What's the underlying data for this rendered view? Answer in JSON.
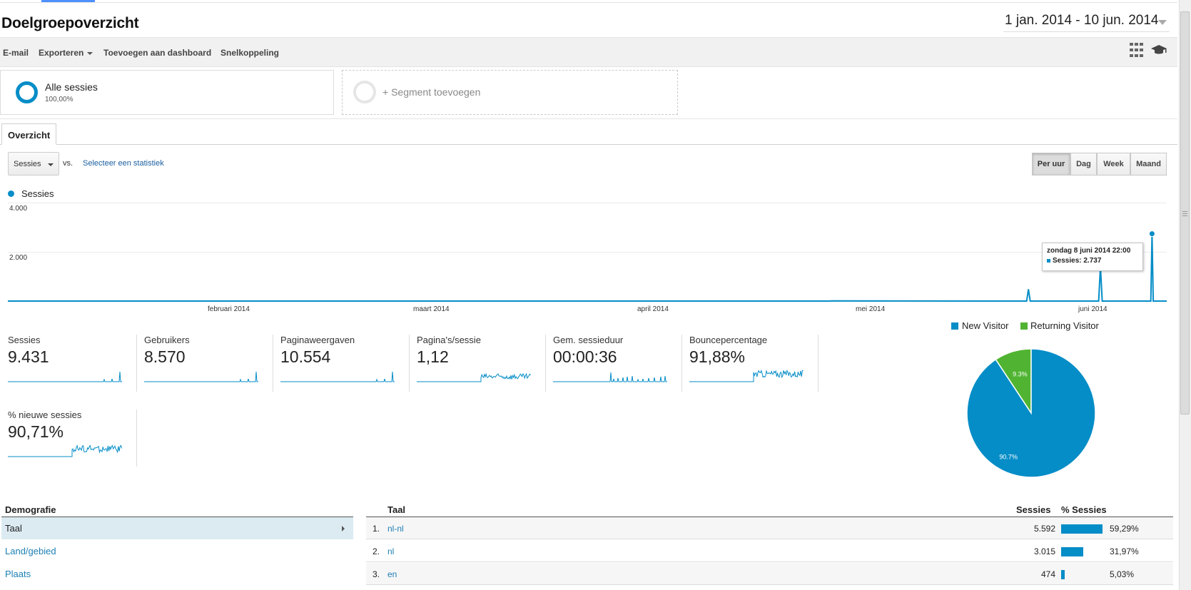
{
  "header": {
    "title": "Doelgroepoverzicht",
    "date_range": "1 jan. 2014 - 10 jun. 2014"
  },
  "toolbar": {
    "email": "E-mail",
    "export": "Exporteren",
    "add_dashboard": "Toevoegen aan dashboard",
    "shortcut": "Snelkoppeling",
    "icons": [
      "grid-icon",
      "graduation-cap-icon"
    ]
  },
  "segments": {
    "active": {
      "name": "Alle sessies",
      "pct": "100,00%"
    },
    "add_label": "+ Segment toevoegen"
  },
  "tabs": [
    {
      "label": "Overzicht"
    }
  ],
  "controls": {
    "metric": "Sessies",
    "vs": "vs.",
    "select_metric": "Selecteer een statistiek",
    "granularity": [
      "Per uur",
      "Dag",
      "Week",
      "Maand"
    ],
    "active_granularity": "Per uur"
  },
  "chart_data": {
    "type": "line",
    "title": "",
    "series": [
      {
        "name": "Sessies",
        "color": "#058dc7",
        "points": [
          [
            "2014-01-01 00:00",
            0
          ],
          [
            "2014-04-25 00:00",
            0
          ],
          [
            "2014-04-25 12:00",
            5
          ],
          [
            "2014-05-22 12:00",
            0
          ],
          [
            "2014-05-22 18:00",
            480
          ],
          [
            "2014-05-23 00:00",
            0
          ],
          [
            "2014-06-01 12:00",
            0
          ],
          [
            "2014-06-01 18:00",
            1400
          ],
          [
            "2014-06-02 00:00",
            0
          ],
          [
            "2014-06-08 18:00",
            0
          ],
          [
            "2014-06-08 22:00",
            2737
          ],
          [
            "2014-06-09 02:00",
            0
          ],
          [
            "2014-06-10 23:00",
            0
          ]
        ]
      }
    ],
    "ylim": [
      0,
      4000
    ],
    "yticks": [
      "4.000",
      "2.000"
    ],
    "xticks": [
      "februari 2014",
      "maart 2014",
      "april 2014",
      "mei 2014",
      "juni 2014"
    ],
    "grid": true,
    "legend": "top-left",
    "tooltip": {
      "title": "zondag 8 juni 2014 22:00",
      "line": "Sessies: 2.737"
    }
  },
  "scorecards": [
    {
      "label": "Sessies",
      "value": "9.431",
      "spark": "spikes"
    },
    {
      "label": "Gebruikers",
      "value": "8.570",
      "spark": "spikes"
    },
    {
      "label": "Paginaweergaven",
      "value": "10.554",
      "spark": "spikes"
    },
    {
      "label": "Pagina's/sessie",
      "value": "1,12",
      "spark": "noisy"
    },
    {
      "label": "Gem. sessieduur",
      "value": "00:00:36",
      "spark": "sparse"
    },
    {
      "label": "Bouncepercentage",
      "value": "91,88%",
      "spark": "noisy"
    },
    {
      "label": "% nieuwe sessies",
      "value": "90,71%",
      "spark": "noisy"
    }
  ],
  "pie": {
    "type": "pie",
    "legend": [
      "New Visitor",
      "Returning Visitor"
    ],
    "colors": [
      "#058dc7",
      "#50b432"
    ],
    "values": [
      90.7,
      9.3
    ],
    "labels": [
      "90.7%",
      "9.3%"
    ]
  },
  "demographics": {
    "heading": "Demografie",
    "items": [
      {
        "label": "Taal",
        "active": true
      },
      {
        "label": "Land/gebied",
        "active": false
      },
      {
        "label": "Plaats",
        "active": false
      }
    ]
  },
  "language_table": {
    "columns": [
      "Taal",
      "Sessies",
      "% Sessies"
    ],
    "rows": [
      {
        "rank": "1.",
        "name": "nl-nl",
        "sessions": "5.592",
        "pct": "59,29%",
        "share": 59.29
      },
      {
        "rank": "2.",
        "name": "nl",
        "sessions": "3.015",
        "pct": "31,97%",
        "share": 31.97
      },
      {
        "rank": "3.",
        "name": "en",
        "sessions": "474",
        "pct": "5,03%",
        "share": 5.03
      }
    ]
  }
}
